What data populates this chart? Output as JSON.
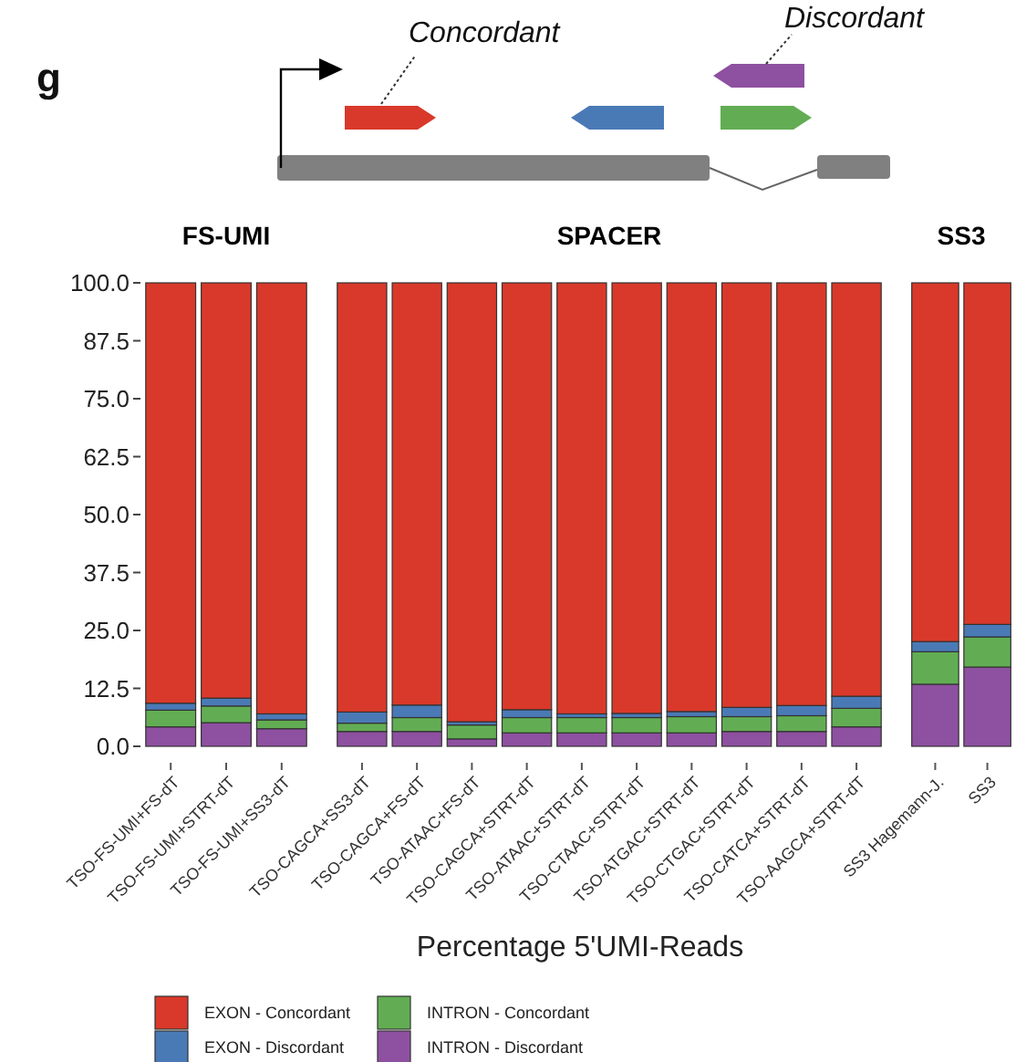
{
  "chart_data": [
    {
      "type": "bar",
      "stacked": true,
      "title": "FS-UMI",
      "categories": [
        "TSO-FS-UMI+FS-dT",
        "TSO-FS-UMI+STRT-dT",
        "TSO-FS-UMI+SS3-dT"
      ],
      "ylim": [
        0,
        100
      ],
      "yticks": [
        {
          "value": 0,
          "label": "0.0"
        },
        12.5,
        {
          "value": 25,
          "label": "25.0"
        },
        37.5,
        {
          "value": 50,
          "label": "50.0"
        },
        62.5,
        {
          "value": 75,
          "label": "75.0"
        },
        87.5,
        {
          "value": 100,
          "label": "100.0"
        }
      ],
      "legend": "bottom",
      "grid": false,
      "annotations": [
        "g",
        "Concordant",
        "Discordant"
      ],
      "series": [
        {
          "name": "INTRON - Discordant",
          "color": "#8e50a0",
          "values": [
            4.2,
            5.1,
            3.8
          ]
        },
        {
          "name": "INTRON - Concordant",
          "color": "#62ad53",
          "values": [
            3.6,
            3.6,
            1.9
          ]
        },
        {
          "name": "EXON - Discordant",
          "color": "#4a7ab6",
          "values": [
            1.5,
            1.7,
            1.3
          ]
        },
        {
          "name": "EXON - Concordant",
          "color": "#d9392a",
          "values": [
            90.7,
            89.6,
            93.0
          ]
        }
      ]
    },
    {
      "type": "bar",
      "stacked": true,
      "title": "SPACER",
      "xlabel": "Percentage 5'UMI-Reads",
      "tick_labels": "x",
      "categories": [
        "TSO-CAGCA+SS3-dT",
        "TSO-CAGCA+FS-dT",
        "TSO-ATAAC+FS-dT",
        "TSO-CAGCA+STRT-dT",
        "TSO-ATAAC+STRT-dT",
        "TSO-CTAAC+STRT-dT",
        "TSO-ATGAC+STRT-dT",
        "TSO-CTGAC+STRT-dT",
        "TSO-CATCA+STRT-dT",
        "TSO-AAGCA+STRT-dT"
      ],
      "ylim": [
        0,
        100
      ],
      "grid": false,
      "series": [
        {
          "color": "#8e50a0",
          "values": [
            3.2,
            3.2,
            1.6,
            2.9,
            2.9,
            2.9,
            2.9,
            3.2,
            3.2,
            4.2
          ]
        },
        {
          "color": "#62ad53",
          "values": [
            1.8,
            3.0,
            3.0,
            3.3,
            3.3,
            3.3,
            3.5,
            3.2,
            3.4,
            4.0
          ]
        },
        {
          "color": "#4a7ab6",
          "values": [
            2.4,
            2.7,
            0.7,
            1.7,
            0.8,
            0.9,
            1.1,
            2.0,
            2.2,
            2.6
          ]
        },
        {
          "color": "#d9392a",
          "values": [
            92.6,
            91.1,
            94.7,
            92.1,
            93.0,
            92.9,
            92.5,
            91.6,
            91.2,
            89.2
          ]
        }
      ]
    },
    {
      "type": "bar",
      "stacked": true,
      "title": "SS3",
      "tick_labels": "x",
      "categories": [
        "SS3 Hagemann-J.",
        "SS3"
      ],
      "ylim": [
        0,
        100
      ],
      "grid": false,
      "series": [
        {
          "color": "#8e50a0",
          "values": [
            13.4,
            17.1
          ]
        },
        {
          "color": "#62ad53",
          "values": [
            7.0,
            6.5
          ]
        },
        {
          "color": "#4a7ab6",
          "values": [
            2.2,
            2.7
          ]
        },
        {
          "color": "#d9392a",
          "values": [
            77.4,
            73.7
          ]
        }
      ]
    }
  ]
}
